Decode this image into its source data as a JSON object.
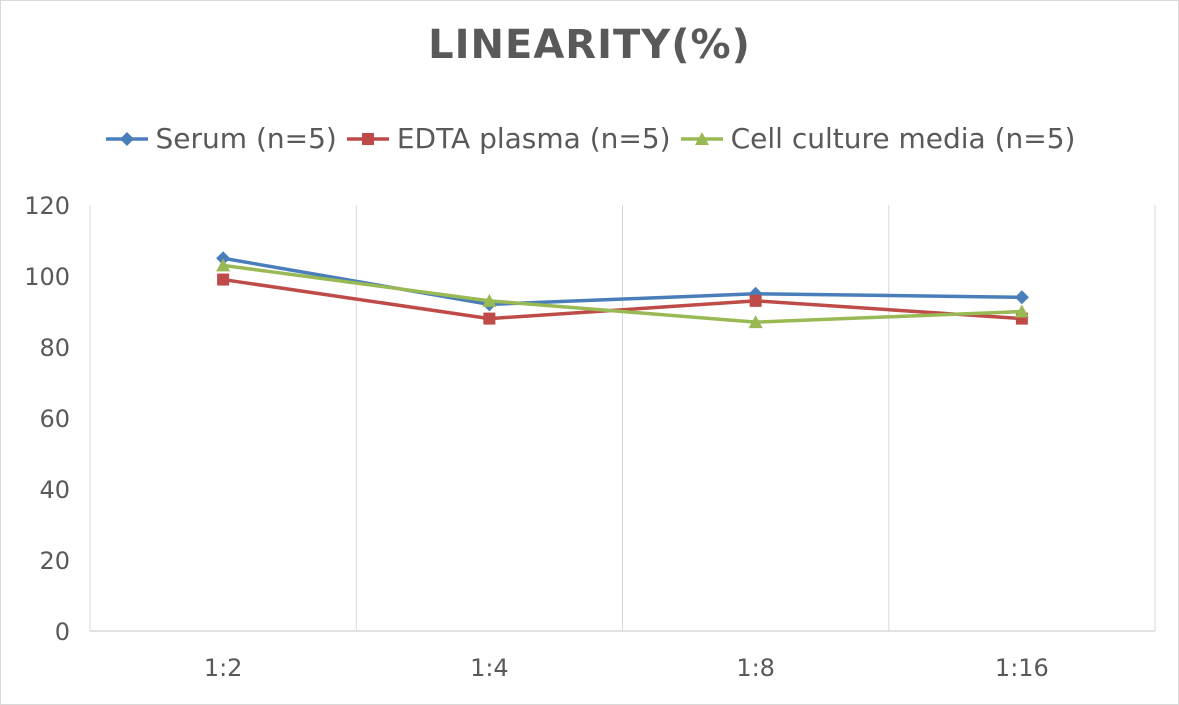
{
  "chart_data": {
    "type": "line",
    "title": "LINEARITY(%)",
    "categories": [
      "1:2",
      "1:4",
      "1:8",
      "1:16"
    ],
    "ylim": [
      0,
      120
    ],
    "yticks": [
      0,
      20,
      40,
      60,
      80,
      100,
      120
    ],
    "grid": "vertical",
    "legend_position": "top",
    "series": [
      {
        "name": "Serum (n=5)",
        "values": [
          105,
          92,
          95,
          94
        ],
        "color": "#4a7ebb",
        "marker": "diamond"
      },
      {
        "name": "EDTA plasma (n=5)",
        "values": [
          99,
          88,
          93,
          88
        ],
        "color": "#be4b48",
        "marker": "square"
      },
      {
        "name": "Cell culture media (n=5)",
        "values": [
          103,
          93,
          87,
          90
        ],
        "color": "#98b954",
        "marker": "triangle"
      }
    ]
  }
}
